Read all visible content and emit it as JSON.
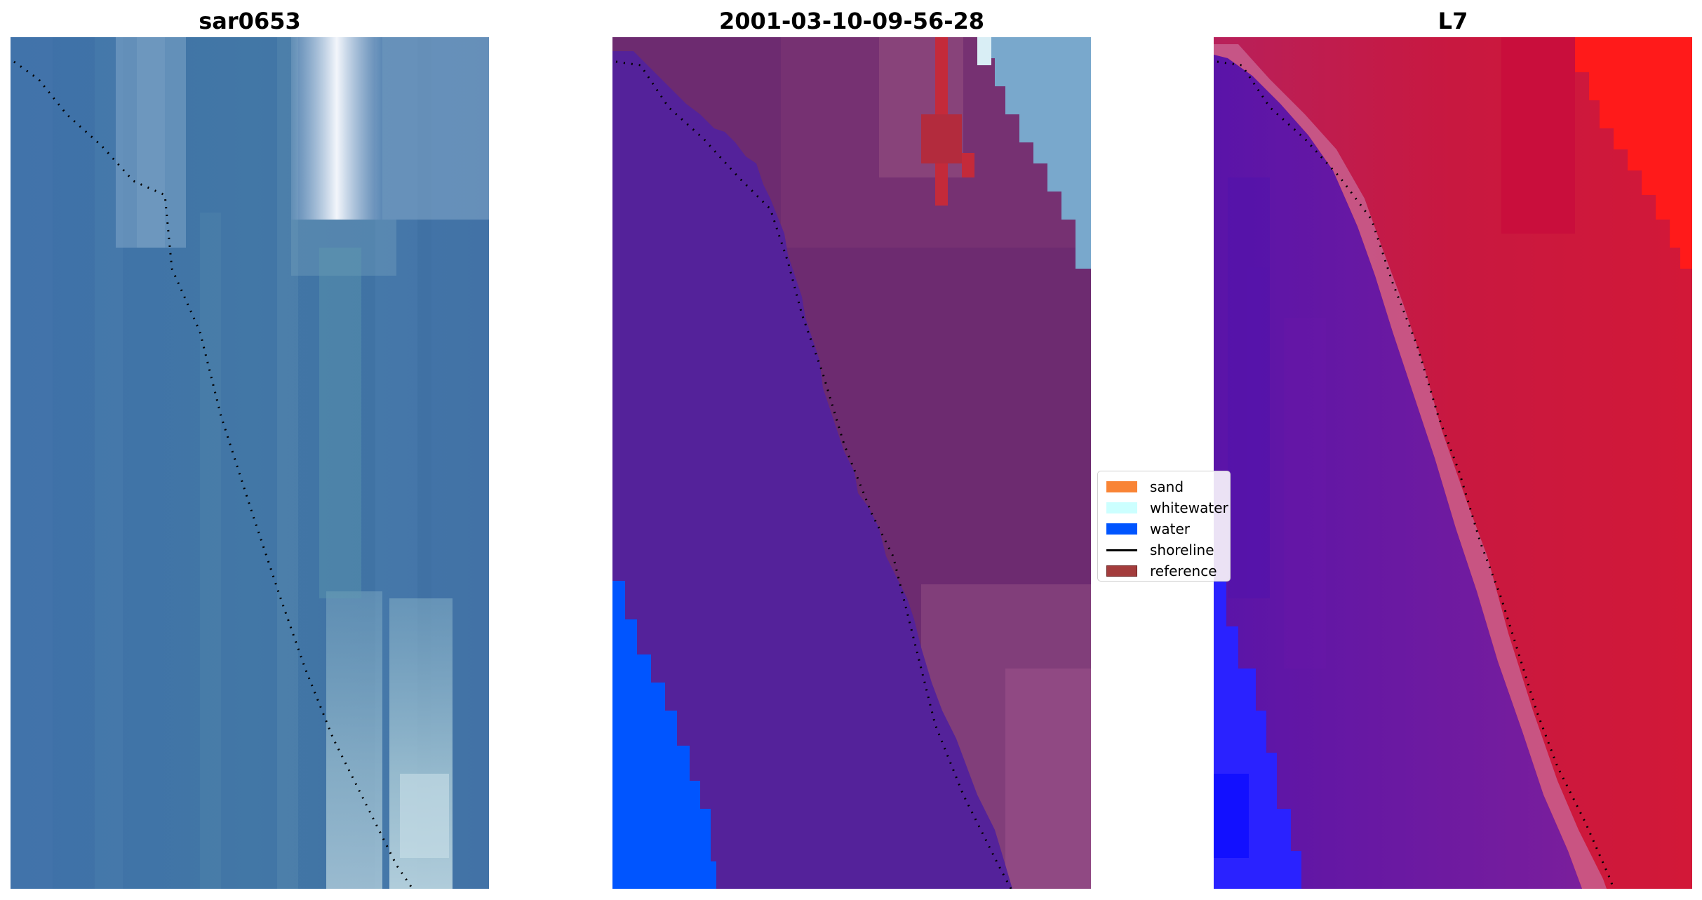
{
  "panels": [
    {
      "title": "sar0653"
    },
    {
      "title": "2001-03-10-09-56-28"
    },
    {
      "title": "L7"
    }
  ],
  "legend": {
    "items": [
      {
        "label": "sand",
        "color": "#f98435",
        "kind": "patch"
      },
      {
        "label": "whitewater",
        "color": "#ccffff",
        "kind": "patch"
      },
      {
        "label": "water",
        "color": "#0055ff",
        "kind": "patch"
      },
      {
        "label": "shoreline",
        "color": "#000000",
        "kind": "line"
      },
      {
        "label": "reference",
        "color": "#a33c3c",
        "kind": "patch"
      }
    ]
  },
  "colors": {
    "rgb_water": "#3f6fa5",
    "rgb_whitewater": "#dfe8f4",
    "class_water_overlay": "#54229a",
    "class_land_overlay": "#6e2c70",
    "class_water_pure": "#0055ff",
    "ndwi_land": "#c8163c",
    "ndwi_water": "#5a12a0",
    "ndwi_deep": "#1a1aff"
  }
}
